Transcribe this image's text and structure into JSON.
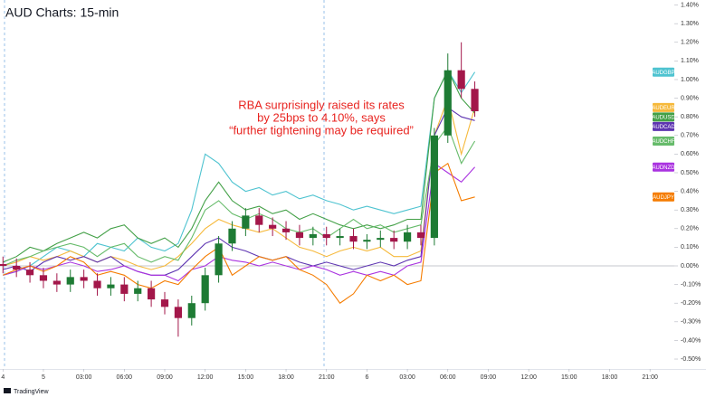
{
  "chart_data": {
    "type": "line",
    "title": "AUD Charts: 15-min",
    "annotation": [
      "RBA surprisingly raised its rates",
      "by 25bps to 4.10%, says",
      "“further tightening may be required”"
    ],
    "source": "TradingView",
    "x": [
      -3,
      -2,
      -1,
      0,
      1,
      2,
      3,
      4,
      5,
      6,
      7,
      8,
      9,
      10,
      11,
      12,
      13,
      14,
      15,
      16,
      17,
      18,
      19,
      20,
      21,
      22,
      23,
      24,
      25,
      26,
      27,
      28,
      29,
      30,
      31,
      32
    ],
    "xlim": [
      -3.22,
      46.6
    ],
    "xticks": [
      {
        "value": -3,
        "label": "4"
      },
      {
        "value": 0,
        "label": "5"
      },
      {
        "value": 3,
        "label": "03:00"
      },
      {
        "value": 6,
        "label": "06:00"
      },
      {
        "value": 9,
        "label": "09:00"
      },
      {
        "value": 12,
        "label": "12:00"
      },
      {
        "value": 15,
        "label": "15:00"
      },
      {
        "value": 18,
        "label": "18:00"
      },
      {
        "value": 21,
        "label": "21:00"
      },
      {
        "value": 24,
        "label": "6"
      },
      {
        "value": 27,
        "label": "03:00"
      },
      {
        "value": 30,
        "label": "06:00"
      },
      {
        "value": 33,
        "label": "09:00"
      },
      {
        "value": 36,
        "label": "12:00"
      },
      {
        "value": 39,
        "label": "15:00"
      },
      {
        "value": 42,
        "label": "18:00"
      },
      {
        "value": 45,
        "label": "21:00"
      }
    ],
    "ylim": [
      -0.563,
      1.427
    ],
    "yticks": [
      {
        "value": 1.4,
        "label": "1.40%"
      },
      {
        "value": 1.3,
        "label": "1.30%"
      },
      {
        "value": 1.2,
        "label": "1.20%"
      },
      {
        "value": 1.1,
        "label": "1.10%"
      },
      {
        "value": 1.0,
        "label": "1.00%"
      },
      {
        "value": 0.9,
        "label": "0.90%"
      },
      {
        "value": 0.8,
        "label": "0.80%"
      },
      {
        "value": 0.7,
        "label": "0.70%"
      },
      {
        "value": 0.6,
        "label": "0.60%"
      },
      {
        "value": 0.5,
        "label": "0.50%"
      },
      {
        "value": 0.4,
        "label": "0.40%"
      },
      {
        "value": 0.3,
        "label": "0.30%"
      },
      {
        "value": 0.2,
        "label": "0.20%"
      },
      {
        "value": 0.1,
        "label": "0.10%"
      },
      {
        "value": 0,
        "label": "0.00%"
      },
      {
        "value": -0.1,
        "label": "-0.10%"
      },
      {
        "value": -0.2,
        "label": "-0.20%"
      },
      {
        "value": -0.3,
        "label": "-0.30%"
      },
      {
        "value": -0.4,
        "label": "-0.40%"
      },
      {
        "value": -0.5,
        "label": "-0.50%"
      }
    ],
    "grid": false,
    "series": [
      {
        "name": "AUDGBP",
        "color": "#4ec3d0",
        "values": [
          -0.05,
          -0.03,
          0.0,
          0.05,
          0.1,
          0.08,
          0.05,
          0.12,
          0.1,
          0.08,
          0.15,
          0.1,
          0.08,
          0.12,
          0.3,
          0.6,
          0.55,
          0.45,
          0.4,
          0.42,
          0.38,
          0.4,
          0.36,
          0.38,
          0.35,
          0.33,
          0.3,
          0.32,
          0.3,
          0.28,
          0.3,
          0.32,
          0.9,
          1.05,
          0.93,
          1.04
        ]
      },
      {
        "name": "AUDEUR",
        "color": "#f6b93b",
        "values": [
          0.0,
          0.02,
          0.05,
          0.03,
          0.05,
          0.08,
          0.05,
          0.02,
          0.05,
          0.03,
          0.0,
          -0.02,
          0.0,
          0.05,
          0.12,
          0.2,
          0.25,
          0.22,
          0.2,
          0.18,
          0.2,
          0.15,
          0.1,
          0.08,
          0.05,
          0.08,
          0.1,
          0.08,
          0.1,
          0.05,
          0.05,
          0.08,
          0.7,
          0.9,
          0.6,
          0.85
        ]
      },
      {
        "name": "AUDUSD",
        "color": "#43a047",
        "values": [
          0.02,
          0.05,
          0.1,
          0.08,
          0.12,
          0.15,
          0.18,
          0.15,
          0.2,
          0.22,
          0.15,
          0.12,
          0.15,
          0.1,
          0.2,
          0.35,
          0.45,
          0.35,
          0.3,
          0.32,
          0.28,
          0.3,
          0.25,
          0.28,
          0.25,
          0.22,
          0.2,
          0.22,
          0.2,
          0.22,
          0.25,
          0.25,
          0.9,
          1.05,
          0.9,
          0.82
        ]
      },
      {
        "name": "AUDCAD",
        "color": "#5e35b1",
        "values": [
          -0.02,
          0.0,
          -0.03,
          0.02,
          0.05,
          0.03,
          0.05,
          0.02,
          0.05,
          0.0,
          -0.03,
          -0.05,
          -0.05,
          -0.02,
          0.05,
          0.12,
          0.15,
          0.1,
          0.08,
          0.05,
          0.03,
          0.05,
          0.02,
          0.0,
          0.02,
          0.0,
          -0.02,
          0.0,
          0.02,
          0.0,
          0.03,
          0.05,
          0.7,
          0.85,
          0.8,
          0.78
        ]
      },
      {
        "name": "AUDCHF",
        "color": "#66bb6a",
        "values": [
          0.0,
          0.03,
          0.05,
          0.08,
          0.1,
          0.12,
          0.1,
          0.05,
          0.1,
          0.12,
          0.05,
          0.02,
          0.05,
          0.03,
          0.15,
          0.3,
          0.35,
          0.28,
          0.25,
          0.28,
          0.25,
          0.2,
          0.18,
          0.2,
          0.15,
          0.2,
          0.25,
          0.2,
          0.22,
          0.18,
          0.2,
          0.22,
          0.65,
          0.75,
          0.55,
          0.67
        ]
      },
      {
        "name": "AUDNZD",
        "color": "#aa33e0",
        "values": [
          -0.05,
          -0.03,
          0.0,
          -0.02,
          0.0,
          0.02,
          0.0,
          -0.03,
          -0.02,
          0.0,
          -0.03,
          -0.05,
          -0.05,
          -0.08,
          -0.02,
          0.0,
          0.05,
          0.03,
          0.02,
          0.0,
          0.02,
          0.0,
          -0.02,
          0.0,
          -0.02,
          -0.05,
          -0.03,
          -0.05,
          -0.03,
          -0.05,
          0.0,
          0.02,
          0.55,
          0.5,
          0.45,
          0.53
        ]
      },
      {
        "name": "AUDJPY",
        "color": "#f57c00",
        "values": [
          -0.05,
          -0.02,
          0.0,
          -0.03,
          0.0,
          0.05,
          0.02,
          -0.05,
          -0.03,
          -0.05,
          -0.1,
          -0.12,
          -0.08,
          -0.1,
          -0.02,
          0.05,
          0.1,
          -0.05,
          0.0,
          0.05,
          0.03,
          0.05,
          -0.02,
          -0.05,
          -0.1,
          -0.2,
          -0.15,
          -0.05,
          -0.08,
          -0.05,
          -0.1,
          -0.08,
          0.5,
          0.55,
          0.35,
          0.37
        ]
      }
    ],
    "candles": {
      "up_color": "#1e7b34",
      "down_color": "#a3174a",
      "open": [
        0.01,
        0.0,
        -0.02,
        -0.05,
        -0.08,
        -0.1,
        -0.06,
        -0.08,
        -0.12,
        -0.1,
        -0.15,
        -0.12,
        -0.18,
        -0.22,
        -0.28,
        -0.2,
        -0.05,
        0.12,
        0.2,
        0.27,
        0.22,
        0.2,
        0.18,
        0.15,
        0.17,
        0.15,
        0.16,
        0.13,
        0.14,
        0.15,
        0.13,
        0.18,
        0.15,
        0.7,
        1.05,
        0.95
      ],
      "high": [
        0.05,
        0.04,
        0.02,
        -0.01,
        -0.04,
        -0.02,
        -0.02,
        -0.04,
        -0.06,
        -0.06,
        -0.08,
        -0.08,
        -0.14,
        -0.18,
        -0.16,
        -0.01,
        0.16,
        0.24,
        0.31,
        0.31,
        0.26,
        0.24,
        0.22,
        0.21,
        0.21,
        0.2,
        0.2,
        0.17,
        0.19,
        0.19,
        0.22,
        0.22,
        0.74,
        1.14,
        1.2,
        0.99
      ],
      "low": [
        -0.04,
        -0.06,
        -0.09,
        -0.12,
        -0.14,
        -0.14,
        -0.12,
        -0.16,
        -0.16,
        -0.19,
        -0.19,
        -0.22,
        -0.26,
        -0.38,
        -0.32,
        -0.24,
        -0.09,
        0.08,
        0.16,
        0.18,
        0.16,
        0.14,
        0.11,
        0.11,
        0.11,
        0.11,
        0.09,
        0.09,
        0.1,
        0.09,
        0.09,
        0.11,
        0.11,
        0.66,
        0.9,
        0.8
      ],
      "close": [
        0.0,
        -0.02,
        -0.05,
        -0.08,
        -0.1,
        -0.06,
        -0.08,
        -0.12,
        -0.1,
        -0.15,
        -0.12,
        -0.18,
        -0.22,
        -0.28,
        -0.2,
        -0.05,
        0.12,
        0.2,
        0.27,
        0.22,
        0.2,
        0.18,
        0.15,
        0.17,
        0.15,
        0.16,
        0.13,
        0.14,
        0.15,
        0.13,
        0.18,
        0.15,
        0.7,
        1.05,
        0.95,
        0.83
      ]
    }
  }
}
